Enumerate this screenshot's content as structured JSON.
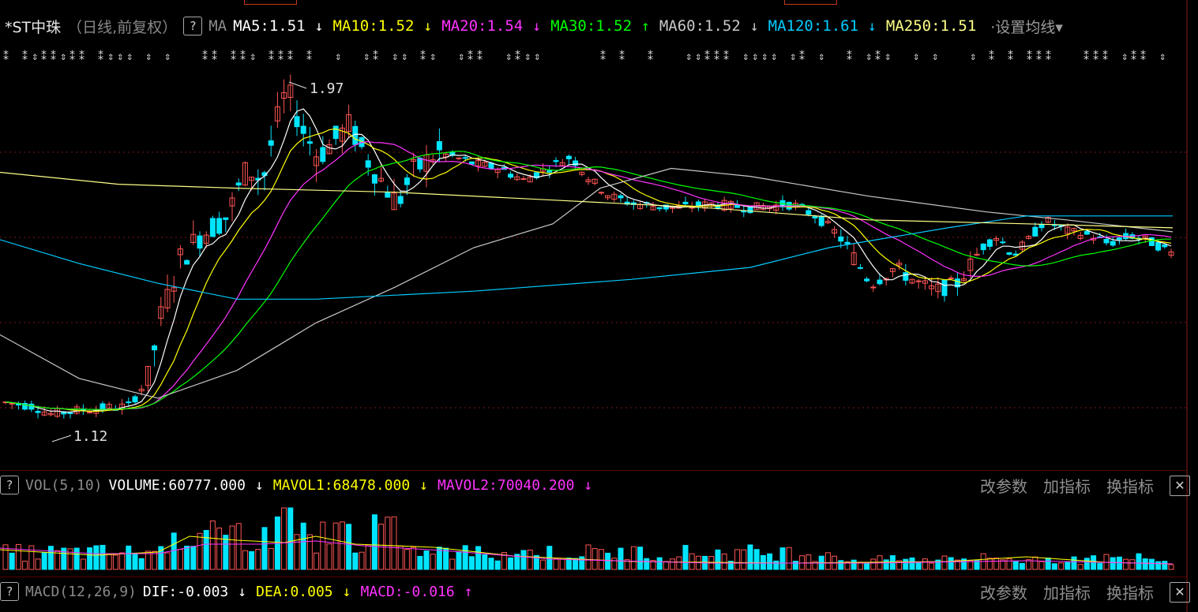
{
  "stock": {
    "name": "*ST中珠",
    "period": "（日线,前复权）"
  },
  "main_indicator": {
    "help": "?",
    "name": "MA",
    "items": [
      {
        "label": "MA5:1.51",
        "color": "#ffffff",
        "arrow": "↓"
      },
      {
        "label": "MA10:1.52",
        "color": "#ffff00",
        "arrow": "↓"
      },
      {
        "label": "MA20:1.54",
        "color": "#ff33ff",
        "arrow": "↓"
      },
      {
        "label": "MA30:1.52",
        "color": "#00ff00",
        "arrow": "↑"
      },
      {
        "label": "MA60:1.52",
        "color": "#c8c8c8",
        "arrow": "↓"
      },
      {
        "label": "MA120:1.61",
        "color": "#00ccff",
        "arrow": "↓"
      },
      {
        "label": "MA250:1.51",
        "color": "#ffff88",
        "arrow": ""
      }
    ],
    "settings_label": "·设置均线▾"
  },
  "price_annotations": {
    "high": "1.97",
    "low": "1.12"
  },
  "volume_panel": {
    "help": "?",
    "name": "VOL(5,10)",
    "items": [
      {
        "label": "VOLUME:60777.000",
        "color": "#ffffff",
        "arrow": "↓"
      },
      {
        "label": "MAVOL1:68478.000",
        "color": "#ffff00",
        "arrow": "↓"
      },
      {
        "label": "MAVOL2:70040.200",
        "color": "#ff33ff",
        "arrow": "↓"
      }
    ],
    "buttons": [
      "改参数",
      "加指标",
      "换指标"
    ],
    "close": "✕"
  },
  "macd_panel": {
    "help": "?",
    "name": "MACD(12,26,9)",
    "items": [
      {
        "label": "DIF:-0.003",
        "color": "#ffffff",
        "arrow": "↓"
      },
      {
        "label": "DEA:0.005",
        "color": "#ffff00",
        "arrow": "↓"
      },
      {
        "label": "MACD:-0.016",
        "color": "#ff33ff",
        "arrow": "↑"
      }
    ],
    "buttons": [
      "改参数",
      "加指标",
      "换指标"
    ],
    "close": "✕"
  },
  "colors": {
    "up": "#ff5555",
    "down": "#00e5ff",
    "grid": "#8a1a1a",
    "ma5": "#ffffff",
    "ma10": "#ffff00",
    "ma20": "#ff33ff",
    "ma30": "#00ff00",
    "ma60": "#c8c8c8",
    "ma120": "#00ccff",
    "ma250": "#ffff88"
  }
}
